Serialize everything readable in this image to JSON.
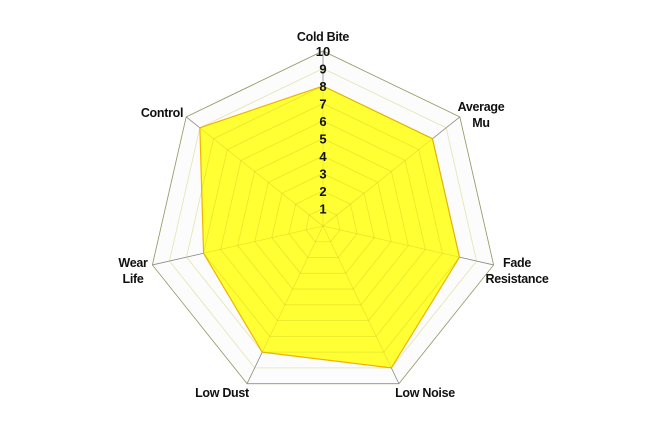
{
  "chart_data": {
    "type": "radar",
    "axes": [
      {
        "label": [
          "Cold Bite"
        ],
        "value": 8
      },
      {
        "label": [
          "Average",
          "Mu"
        ],
        "value": 8
      },
      {
        "label": [
          "Fade",
          "Resistance"
        ],
        "value": 8
      },
      {
        "label": [
          "Low Noise"
        ],
        "value": 9
      },
      {
        "label": [
          "Low Dust"
        ],
        "value": 8
      },
      {
        "label": [
          "Wear",
          "Life"
        ],
        "value": 7
      },
      {
        "label": [
          "Control"
        ],
        "value": 9
      }
    ],
    "rlim": [
      0,
      10
    ],
    "ticks": [
      "1",
      "2",
      "3",
      "4",
      "5",
      "6",
      "7",
      "8",
      "9",
      "10"
    ],
    "grid": true,
    "colors": {
      "fill": "#ffff33",
      "stroke": "#f0b400",
      "grid": "#8a8a8a"
    }
  }
}
